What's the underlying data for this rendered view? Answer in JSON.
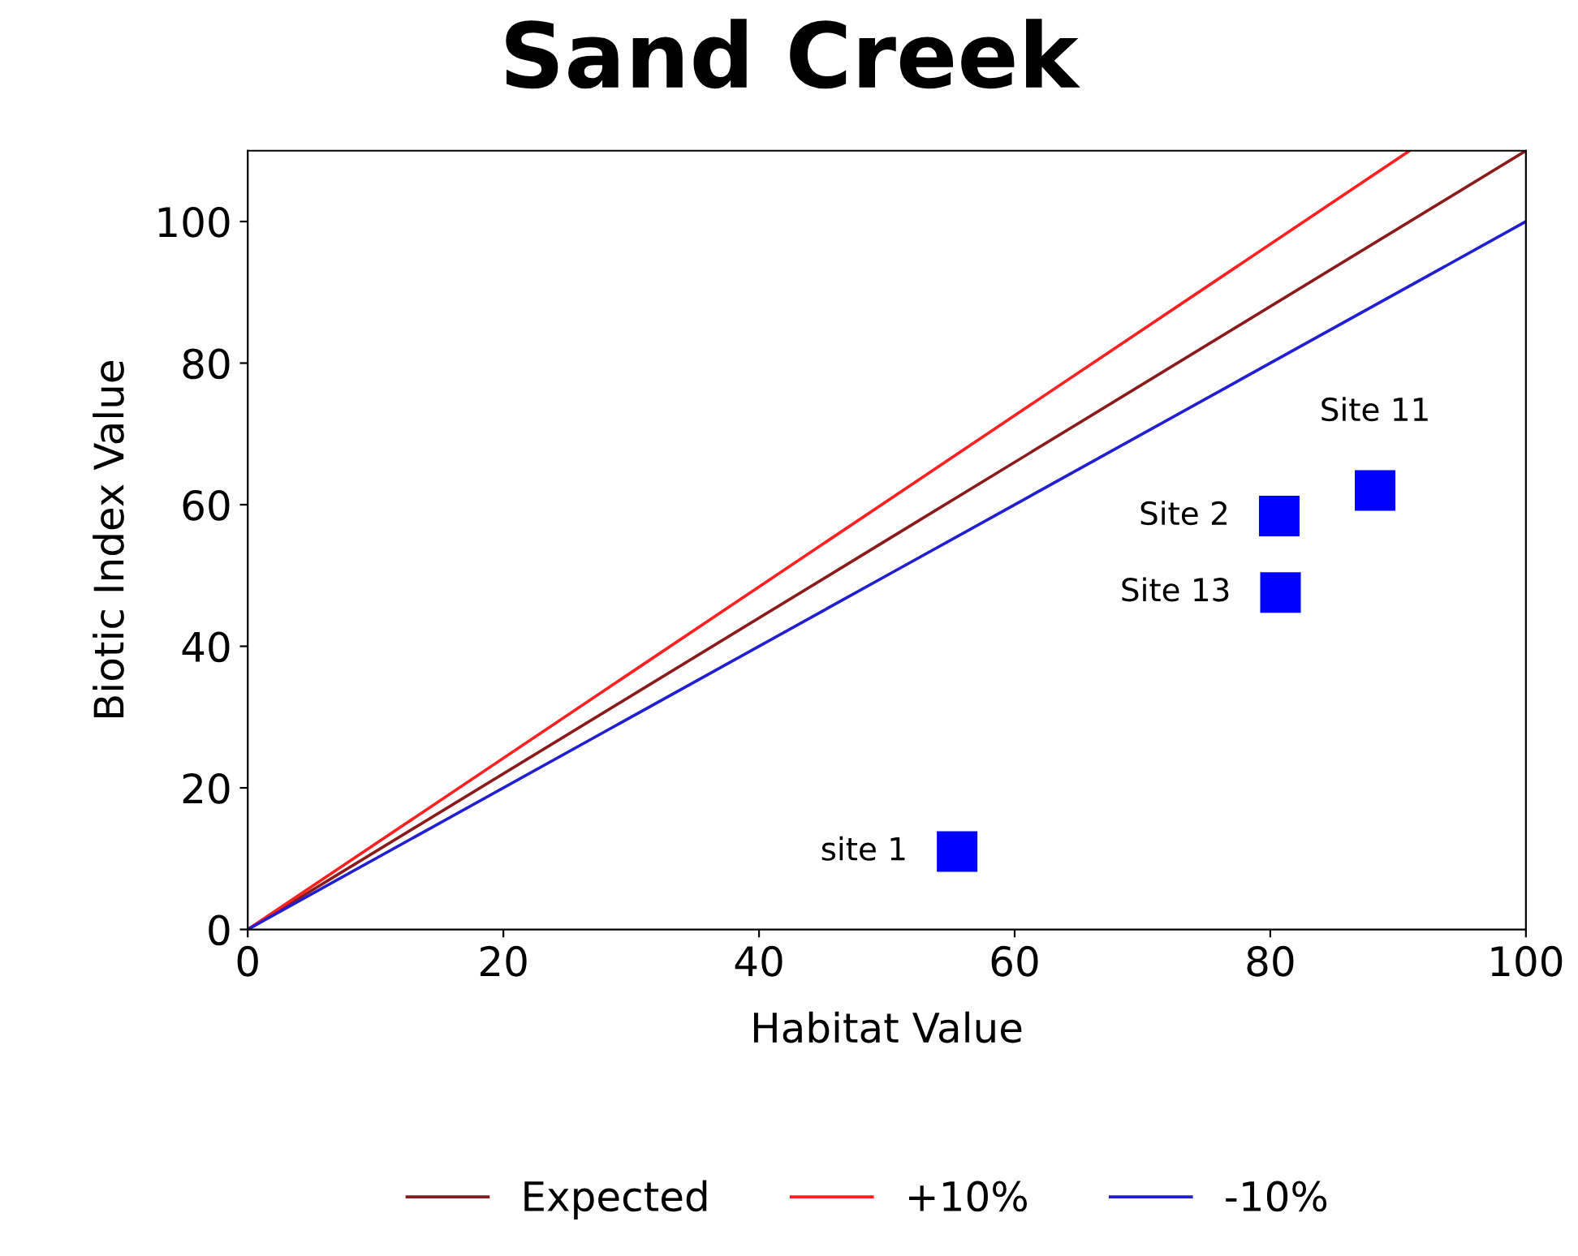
{
  "chart_data": {
    "type": "line",
    "title": "Sand Creek",
    "xlabel": "Habitat Value",
    "ylabel": "Biotic Index Value",
    "xlim": [
      0,
      100
    ],
    "ylim": [
      0,
      110
    ],
    "xticks": [
      0,
      20,
      40,
      60,
      80,
      100
    ],
    "yticks": [
      0,
      20,
      40,
      60,
      80,
      100
    ],
    "grid": false,
    "legend": "bottom",
    "marker": "none",
    "line_style": "solid",
    "series": [
      {
        "name": "Expected",
        "color": "#8b1a1a",
        "x": [
          0,
          50,
          100
        ],
        "values": [
          0,
          55,
          110
        ]
      },
      {
        "name": "+10%",
        "color": "#ff2020",
        "x": [
          0,
          50,
          90.9
        ],
        "values": [
          0,
          60.5,
          110
        ]
      },
      {
        "name": "-10%",
        "color": "#2020d0",
        "x": [
          0,
          50,
          100
        ],
        "values": [
          0,
          50,
          100
        ]
      },
      {
        "type": "scatter",
        "color": "#0000ff",
        "marker": "square",
        "x": [
          55.5,
          80.7,
          80.8,
          88.2
        ],
        "values": [
          11,
          58.4,
          47.6,
          62
        ]
      }
    ],
    "annotations": [
      {
        "text": "site 1",
        "x": 55.5,
        "y": 11
      },
      {
        "text": "Site 2",
        "x": 80.7,
        "y": 58.4
      },
      {
        "text": "Site 13",
        "x": 80.8,
        "y": 47.6
      },
      {
        "text": "Site 11",
        "x": 88.2,
        "y": 62
      }
    ]
  }
}
